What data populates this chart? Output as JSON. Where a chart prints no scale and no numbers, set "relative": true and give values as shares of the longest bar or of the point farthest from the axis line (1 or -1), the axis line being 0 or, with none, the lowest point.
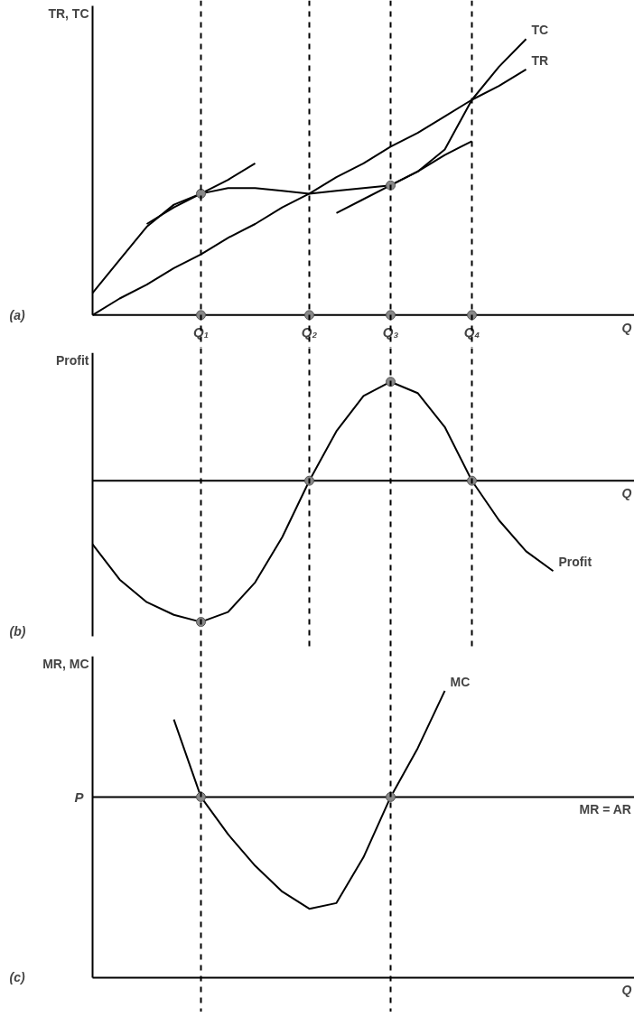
{
  "chart_data": [
    {
      "type": "line",
      "relative": true,
      "ylabel": "TR, TC",
      "xlabel": "Q",
      "tick_labels": "x",
      "annotations": [
        "(a)"
      ],
      "categories": [
        null,
        null,
        null,
        null,
        "Q₁",
        null,
        null,
        null,
        "Q₂",
        null,
        null,
        "Q₃",
        null,
        null,
        "Q₄",
        null,
        null,
        null,
        null,
        null,
        null
      ],
      "ref_lines": [
        {
          "axis": "x",
          "value": "Q₁",
          "color": "#000000",
          "line_style": "dashed"
        },
        {
          "axis": "x",
          "value": "Q₂",
          "color": "#000000",
          "line_style": "dashed"
        },
        {
          "axis": "x",
          "value": "Q₃",
          "color": "#000000",
          "line_style": "dashed"
        },
        {
          "axis": "x",
          "value": "Q₄",
          "color": "#000000",
          "line_style": "dashed"
        }
      ],
      "series": [
        {
          "name": "TR",
          "color": "#000000",
          "values": [
            0,
            0.06,
            0.11,
            0.17,
            0.22,
            0.28,
            0.33,
            0.39,
            0.44,
            0.5,
            0.55,
            0.61,
            0.66,
            0.72,
            0.78,
            0.83,
            0.89,
            null,
            null,
            null,
            null
          ]
        },
        {
          "name": "TC",
          "color": "#000000",
          "values": [
            0.08,
            0.2,
            0.32,
            0.4,
            0.44,
            0.46,
            0.46,
            0.45,
            0.44,
            0.45,
            0.46,
            0.47,
            0.52,
            0.6,
            0.78,
            0.9,
            1.0,
            null,
            null,
            null,
            null
          ]
        },
        {
          "color": "#000000",
          "values": [
            null,
            null,
            0.33,
            0.39,
            0.44,
            0.49,
            0.55,
            null,
            null,
            null,
            null,
            null,
            null,
            null,
            null,
            null,
            null,
            null,
            null,
            null,
            null
          ]
        },
        {
          "color": "#000000",
          "values": [
            null,
            null,
            null,
            null,
            null,
            null,
            null,
            null,
            null,
            0.37,
            0.42,
            0.47,
            0.52,
            0.58,
            0.63,
            null,
            null,
            null,
            null,
            null,
            null
          ]
        },
        {
          "type": "scatter",
          "marker": "circle",
          "color": "#888888",
          "values": [
            null,
            null,
            null,
            null,
            0,
            null,
            null,
            null,
            0,
            null,
            null,
            0,
            null,
            null,
            0,
            null,
            null,
            null,
            null,
            null,
            null
          ]
        },
        {
          "type": "scatter",
          "marker": "circle",
          "color": "#888888",
          "values": [
            null,
            null,
            null,
            null,
            0.44,
            null,
            null,
            null,
            null,
            null,
            null,
            0.47,
            null,
            null,
            null,
            null,
            null,
            null,
            null,
            null,
            null
          ]
        }
      ]
    },
    {
      "type": "line",
      "relative": true,
      "ylabel": "Profit",
      "xlabel": "Q",
      "tick_labels": false,
      "annotations": [
        "(b)"
      ],
      "categories": [
        null,
        null,
        null,
        null,
        "Q₁",
        null,
        null,
        null,
        "Q₂",
        null,
        null,
        "Q₃",
        null,
        null,
        "Q₄",
        null,
        null,
        null,
        null,
        null,
        null
      ],
      "ref_lines": [
        {
          "axis": "x",
          "value": "Q₁",
          "color": "#000000",
          "line_style": "dashed"
        },
        {
          "axis": "x",
          "value": "Q₂",
          "color": "#000000",
          "line_style": "dashed"
        },
        {
          "axis": "x",
          "value": "Q₃",
          "color": "#000000",
          "line_style": "dashed"
        },
        {
          "axis": "x",
          "value": "Q₄",
          "color": "#000000",
          "line_style": "dashed"
        }
      ],
      "series": [
        {
          "name": "Profit",
          "color": "#000000",
          "values": [
            -0.45,
            -0.7,
            -0.86,
            -0.95,
            -1,
            -0.93,
            -0.72,
            -0.4,
            0,
            0.35,
            0.6,
            0.7,
            0.62,
            0.38,
            0,
            -0.28,
            -0.5,
            -0.64,
            null,
            null,
            null
          ]
        },
        {
          "type": "scatter",
          "marker": "circle",
          "color": "#888888",
          "values": [
            null,
            null,
            null,
            null,
            -1,
            null,
            null,
            null,
            0,
            null,
            null,
            0.7,
            null,
            null,
            0,
            null,
            null,
            null,
            null,
            null,
            null
          ]
        }
      ]
    },
    {
      "type": "line",
      "relative": true,
      "ylabel": "MR, MC",
      "xlabel": "Q",
      "tick_labels": false,
      "annotations": [
        "(c)",
        "P"
      ],
      "categories": [
        null,
        null,
        null,
        null,
        "Q₁",
        null,
        null,
        null,
        "Q₂",
        null,
        null,
        "Q₃",
        null,
        null,
        "Q₄",
        null,
        null,
        null,
        null,
        null,
        null
      ],
      "ref_lines": [
        {
          "axis": "x",
          "value": "Q₁",
          "color": "#000000",
          "line_style": "dashed"
        },
        {
          "axis": "x",
          "value": "Q₃",
          "color": "#000000",
          "line_style": "dashed"
        }
      ],
      "series": [
        {
          "name": "MC",
          "color": "#000000",
          "values": [
            null,
            null,
            null,
            0.9,
            0.63,
            0.5,
            0.39,
            0.3,
            0.24,
            0.26,
            0.42,
            0.63,
            0.8,
            1.0,
            null,
            null,
            null,
            null,
            null,
            null,
            null
          ]
        },
        {
          "name": "MR = AR",
          "color": "#000000",
          "values": [
            0.63,
            0.63,
            0.63,
            0.63,
            0.63,
            0.63,
            0.63,
            0.63,
            0.63,
            0.63,
            0.63,
            0.63,
            0.63,
            0.63,
            0.63,
            0.63,
            0.63,
            0.63,
            0.63,
            0.63,
            0.63
          ]
        },
        {
          "type": "scatter",
          "marker": "circle",
          "color": "#888888",
          "values": [
            null,
            null,
            null,
            null,
            0.63,
            null,
            null,
            null,
            null,
            null,
            null,
            0.63,
            null,
            null,
            null,
            null,
            null,
            null,
            null,
            null,
            null
          ]
        }
      ]
    }
  ]
}
